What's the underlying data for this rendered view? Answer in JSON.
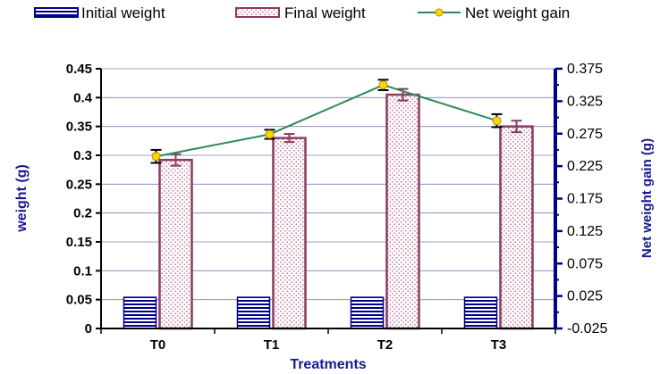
{
  "chart_data": {
    "type": "bar",
    "categories": [
      "T0",
      "T1",
      "T2",
      "T3"
    ],
    "series": [
      {
        "name": "Initial weight",
        "kind": "bar",
        "axis": "left",
        "values": [
          0.054,
          0.054,
          0.054,
          0.054
        ],
        "errors": [
          0.001,
          0.001,
          0.001,
          0.001
        ],
        "color": "#00008b",
        "fill": "horizontal-stripes"
      },
      {
        "name": "Final weight",
        "kind": "bar",
        "axis": "left",
        "values": [
          0.292,
          0.33,
          0.405,
          0.35
        ],
        "errors": [
          0.01,
          0.007,
          0.01,
          0.01
        ],
        "color": "#8b3a62",
        "fill": "dotted"
      },
      {
        "name": "Net weight gain",
        "kind": "line",
        "axis": "right",
        "values": [
          0.24,
          0.274,
          0.35,
          0.295
        ],
        "errors": [
          0.01,
          0.007,
          0.008,
          0.01
        ],
        "color": "#2e8b57",
        "marker_color": "#ffd700"
      }
    ],
    "xlabel": "Treatments",
    "ylabel": "weight (g)",
    "y2label": "Net weight gain (g)",
    "ylim": [
      0,
      0.45
    ],
    "y2lim": [
      -0.025,
      0.375
    ],
    "yticks": [
      "0",
      "0.05",
      "0.1",
      "0.15",
      "0.2",
      "0.25",
      "0.3",
      "0.35",
      "0.4",
      "0.45"
    ],
    "y2ticks": [
      "-0.025",
      "0.025",
      "0.075",
      "0.125",
      "0.175",
      "0.225",
      "0.275",
      "0.325",
      "0.375"
    ],
    "grid": true,
    "legend_position": "top"
  }
}
